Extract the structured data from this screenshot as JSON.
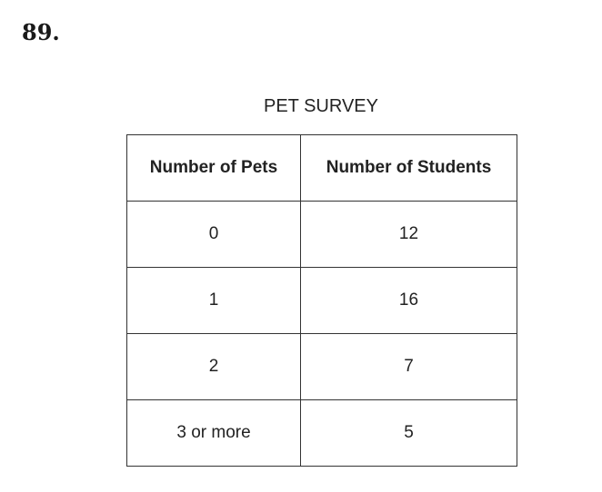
{
  "question": {
    "number": "89."
  },
  "table": {
    "title": "PET SURVEY",
    "headers": [
      "Number of Pets",
      "Number of Students"
    ],
    "rows": [
      [
        "0",
        "12"
      ],
      [
        "1",
        "16"
      ],
      [
        "2",
        "7"
      ],
      [
        "3 or more",
        "5"
      ]
    ]
  },
  "chart_data": {
    "type": "table",
    "title": "PET SURVEY",
    "columns": [
      "Number of Pets",
      "Number of Students"
    ],
    "categories": [
      "0",
      "1",
      "2",
      "3 or more"
    ],
    "values": [
      12,
      16,
      7,
      5
    ]
  }
}
